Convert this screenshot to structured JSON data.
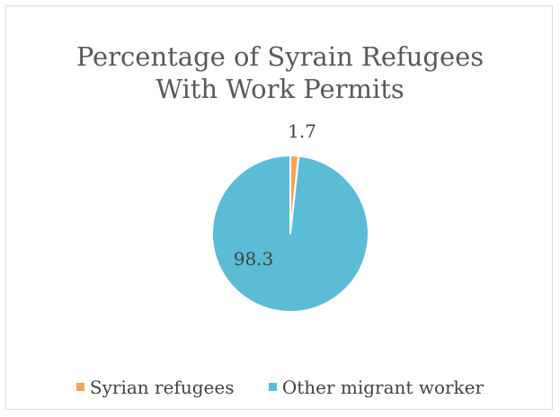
{
  "chart_data": {
    "type": "pie",
    "title_lines": [
      "Percentage of Syrain Refugees",
      "With Work Permits"
    ],
    "categories": [
      "Syrian refugees",
      "Other migrant worker"
    ],
    "values": [
      1.7,
      98.3
    ],
    "data_labels": [
      "1.7",
      "98.3"
    ],
    "colors": [
      "#f4a45a",
      "#5bbcd6"
    ],
    "legend_position": "bottom"
  }
}
